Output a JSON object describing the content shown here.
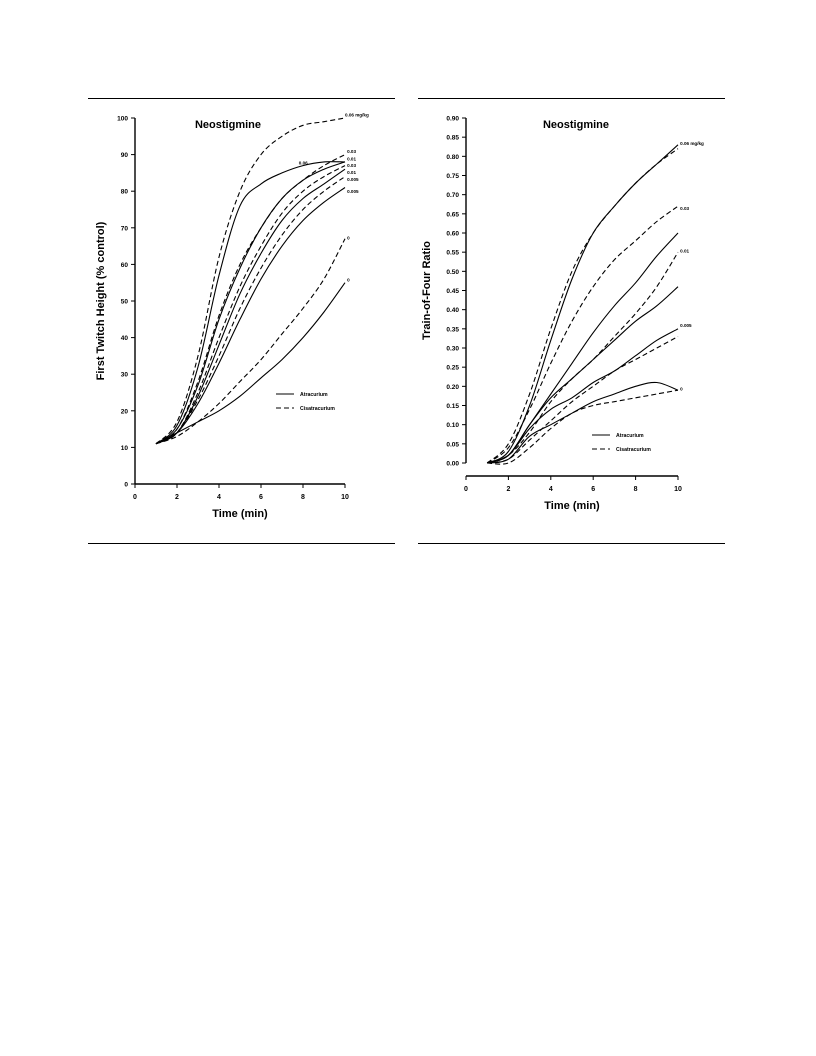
{
  "chart_data": [
    {
      "type": "line",
      "title": "Neostigmine",
      "xlabel": "Time (min)",
      "ylabel": "First Twitch Height (% control)",
      "xlim": [
        0,
        10
      ],
      "ylim": [
        0,
        100
      ],
      "xticks": [
        0,
        2,
        4,
        6,
        8,
        10
      ],
      "yticks": [
        0,
        10,
        20,
        30,
        40,
        50,
        60,
        70,
        80,
        90,
        100
      ],
      "xtick_labels": [
        "0",
        "2",
        "4",
        "6",
        "8",
        "10"
      ],
      "ytick_labels": [
        "0",
        "10",
        "20",
        "30",
        "40",
        "50",
        "60",
        "70",
        "80",
        "90",
        "100"
      ],
      "legend": {
        "placement": "bottom-right",
        "entries": [
          {
            "name": "Atracurium",
            "style": "solid"
          },
          {
            "name": "Cisatracurium",
            "style": "dashed"
          }
        ]
      },
      "series": [
        {
          "label": "0.06 mg/kg",
          "style": "dashed",
          "x": [
            1,
            2,
            3,
            4,
            5,
            6,
            7,
            8,
            9,
            10
          ],
          "y": [
            11,
            17,
            35,
            62,
            80,
            90,
            95,
            98,
            99,
            100
          ]
        },
        {
          "label": "0.06",
          "style": "solid",
          "x": [
            1,
            2,
            3,
            4,
            5,
            6,
            7,
            8,
            9,
            10
          ],
          "y": [
            11,
            16,
            32,
            57,
            76,
            82,
            85,
            87,
            88,
            88
          ]
        },
        {
          "label": "0.03",
          "style": "dashed",
          "x": [
            1,
            2,
            3,
            4,
            5,
            6,
            7,
            8,
            9,
            10
          ],
          "y": [
            11,
            15,
            28,
            46,
            60,
            70,
            78,
            83,
            87,
            90
          ]
        },
        {
          "label": "0.03",
          "style": "solid",
          "x": [
            1,
            2,
            3,
            4,
            5,
            6,
            7,
            8,
            9,
            10
          ],
          "y": [
            11,
            15,
            27,
            45,
            59,
            70,
            78,
            83,
            86,
            88
          ]
        },
        {
          "label": "0.01",
          "style": "dashed",
          "x": [
            1,
            2,
            3,
            4,
            5,
            6,
            7,
            8,
            9,
            10
          ],
          "y": [
            11,
            14,
            25,
            40,
            54,
            65,
            74,
            80,
            84,
            87
          ]
        },
        {
          "label": "0.01",
          "style": "solid",
          "x": [
            1,
            2,
            3,
            4,
            5,
            6,
            7,
            8,
            9,
            10
          ],
          "y": [
            11,
            14,
            24,
            38,
            52,
            63,
            72,
            78,
            82,
            86
          ]
        },
        {
          "label": "0.005",
          "style": "dashed",
          "x": [
            1,
            2,
            3,
            4,
            5,
            6,
            7,
            8,
            9,
            10
          ],
          "y": [
            11,
            14,
            23,
            35,
            48,
            59,
            68,
            75,
            80,
            84
          ]
        },
        {
          "label": "0.005",
          "style": "solid",
          "x": [
            1,
            2,
            3,
            4,
            5,
            6,
            7,
            8,
            9,
            10
          ],
          "y": [
            11,
            14,
            22,
            33,
            45,
            56,
            65,
            72,
            77,
            81
          ]
        },
        {
          "label": "0",
          "style": "dashed",
          "x": [
            1,
            2,
            3,
            4,
            5,
            6,
            7,
            8,
            9,
            10
          ],
          "y": [
            11,
            13,
            17,
            22,
            28,
            34,
            41,
            48,
            56,
            67
          ]
        },
        {
          "label": "0",
          "style": "solid",
          "x": [
            1,
            2,
            3,
            4,
            5,
            6,
            7,
            8,
            9,
            10
          ],
          "y": [
            11,
            14,
            17,
            20,
            24,
            29,
            34,
            40,
            47,
            55
          ]
        }
      ],
      "end_labels": [
        {
          "text": "0.06 mg/kg",
          "x": 10,
          "y": 101
        },
        {
          "text": "0.06",
          "x": 7.8,
          "y": 87.8
        },
        {
          "text": "0.03",
          "x": 10.1,
          "y": 91
        },
        {
          "text": "0.01",
          "x": 10.1,
          "y": 88.9
        },
        {
          "text": "0.03",
          "x": 10.1,
          "y": 87.1
        },
        {
          "text": "0.01",
          "x": 10.1,
          "y": 85.3
        },
        {
          "text": "0.005",
          "x": 10.1,
          "y": 83.3
        },
        {
          "text": "0.005",
          "x": 10.1,
          "y": 80.1
        },
        {
          "text": "0",
          "x": 10.1,
          "y": 67.4
        },
        {
          "text": "0",
          "x": 10.1,
          "y": 55.9
        }
      ]
    },
    {
      "type": "line",
      "title": "Neostigmine",
      "xlabel": "Time (min)",
      "ylabel": "Train-of-Four Ratio",
      "xlim": [
        0,
        10
      ],
      "ylim": [
        0,
        0.9
      ],
      "xticks": [
        0,
        2,
        4,
        6,
        8,
        10
      ],
      "yticks": [
        0,
        0.05,
        0.1,
        0.15,
        0.2,
        0.25,
        0.3,
        0.35,
        0.4,
        0.45,
        0.5,
        0.55,
        0.6,
        0.65,
        0.7,
        0.75,
        0.8,
        0.85,
        0.9
      ],
      "xtick_labels": [
        "0",
        "2",
        "4",
        "6",
        "8",
        "10"
      ],
      "ytick_labels": [
        "0.00",
        "0.05",
        "0.10",
        "0.15",
        "0.20",
        "0.25",
        "0.30",
        "0.35",
        "0.40",
        "0.45",
        "0.50",
        "0.55",
        "0.60",
        "0.65",
        "0.70",
        "0.75",
        "0.80",
        "0.85",
        "0.90"
      ],
      "legend": {
        "placement": "bottom-right",
        "entries": [
          {
            "name": "Atracurium",
            "style": "solid"
          },
          {
            "name": "Cisatracurium",
            "style": "dashed"
          }
        ]
      },
      "series": [
        {
          "label": "0.06 mg/kg",
          "style": "solid",
          "x": [
            1,
            2,
            3,
            4,
            5,
            6,
            7,
            8,
            9,
            10
          ],
          "y": [
            0.0,
            0.03,
            0.15,
            0.32,
            0.48,
            0.6,
            0.67,
            0.73,
            0.78,
            0.83
          ]
        },
        {
          "label": "0.06 mg/kg",
          "style": "dashed",
          "x": [
            1,
            2,
            3,
            4,
            5,
            6,
            7,
            8,
            9,
            10
          ],
          "y": [
            0.0,
            0.05,
            0.18,
            0.35,
            0.5,
            0.6,
            0.67,
            0.73,
            0.78,
            0.82
          ]
        },
        {
          "label": "0.03",
          "style": "dashed",
          "x": [
            1,
            2,
            3,
            4,
            5,
            6,
            7,
            8,
            9,
            10
          ],
          "y": [
            0.0,
            0.04,
            0.14,
            0.26,
            0.37,
            0.46,
            0.53,
            0.58,
            0.63,
            0.67
          ]
        },
        {
          "label": "0.01",
          "style": "solid",
          "x": [
            1,
            2,
            3,
            4,
            5,
            6,
            7,
            8,
            9,
            10
          ],
          "y": [
            0.0,
            0.02,
            0.1,
            0.18,
            0.26,
            0.34,
            0.41,
            0.47,
            0.54,
            0.6
          ]
        },
        {
          "label": "0.01",
          "style": "dashed",
          "x": [
            1,
            2,
            3,
            4,
            5,
            6,
            7,
            8,
            9,
            10
          ],
          "y": [
            0.0,
            0.02,
            0.08,
            0.16,
            0.22,
            0.27,
            0.33,
            0.39,
            0.46,
            0.55
          ]
        },
        {
          "label": "0.01",
          "style": "solid",
          "x": [
            1,
            2,
            3,
            4,
            5,
            6,
            7,
            8,
            9,
            10
          ],
          "y": [
            0.0,
            0.02,
            0.1,
            0.17,
            0.22,
            0.27,
            0.32,
            0.37,
            0.41,
            0.46
          ]
        },
        {
          "label": "0.005",
          "style": "solid",
          "x": [
            1,
            2,
            3,
            4,
            5,
            6,
            7,
            8,
            9,
            10
          ],
          "y": [
            0.0,
            0.02,
            0.09,
            0.14,
            0.17,
            0.21,
            0.24,
            0.28,
            0.32,
            0.35
          ]
        },
        {
          "label": "0.005",
          "style": "dashed",
          "x": [
            1,
            2,
            3,
            4,
            5,
            6,
            7,
            8,
            9,
            10
          ],
          "y": [
            0.0,
            0.01,
            0.06,
            0.11,
            0.16,
            0.2,
            0.24,
            0.27,
            0.3,
            0.33
          ]
        },
        {
          "label": "0",
          "style": "solid",
          "x": [
            1,
            2,
            3,
            4,
            5,
            6,
            7,
            8,
            9,
            10
          ],
          "y": [
            0.0,
            0.01,
            0.07,
            0.1,
            0.13,
            0.16,
            0.18,
            0.2,
            0.21,
            0.19
          ]
        },
        {
          "label": "0",
          "style": "dashed",
          "x": [
            1,
            2,
            3,
            4,
            5,
            6,
            7,
            8,
            9,
            10
          ],
          "y": [
            0.0,
            0.0,
            0.04,
            0.09,
            0.13,
            0.15,
            0.16,
            0.17,
            0.18,
            0.19
          ]
        }
      ],
      "end_labels": [
        {
          "text": "0.06 mg/kg",
          "x": 10.1,
          "y": 0.835
        },
        {
          "text": "0.03",
          "x": 10.1,
          "y": 0.665
        },
        {
          "text": "0.01",
          "x": 10.1,
          "y": 0.555
        },
        {
          "text": "0.005",
          "x": 10.1,
          "y": 0.36
        },
        {
          "text": "0",
          "x": 10.1,
          "y": 0.195
        }
      ]
    }
  ]
}
